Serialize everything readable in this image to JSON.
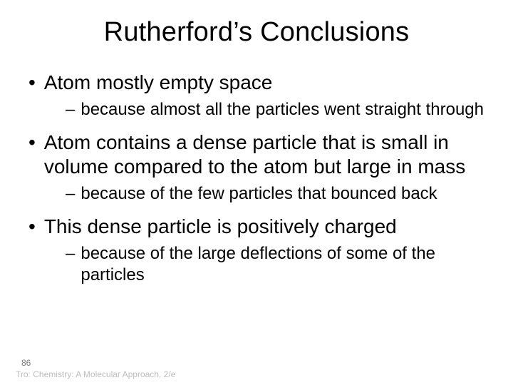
{
  "title": "Rutherford’s Conclusions",
  "bullets": [
    {
      "text": "Atom mostly empty space",
      "sub": [
        "because almost all the particles went straight through"
      ]
    },
    {
      "text": "Atom contains a dense particle that is small in volume compared to the atom but large in mass",
      "sub": [
        "because of the few particles that bounced back"
      ]
    },
    {
      "text": "This dense particle is positively charged",
      "sub": [
        "because of the large deflections of some of the particles"
      ]
    }
  ],
  "page_number": "86",
  "footer": "Tro: Chemistry: A Molecular Approach, 2/e",
  "style": {
    "background_color": "#ffffff",
    "text_color": "#000000",
    "footer_color": "#bdbdbd",
    "pagenum_color": "#7a7a7a",
    "title_fontsize": 38,
    "l1_fontsize": 28,
    "l2_fontsize": 24,
    "footer_fontsize": 12,
    "font_family": "Arial",
    "bullet_glyph": "•",
    "dash_glyph": "–"
  }
}
